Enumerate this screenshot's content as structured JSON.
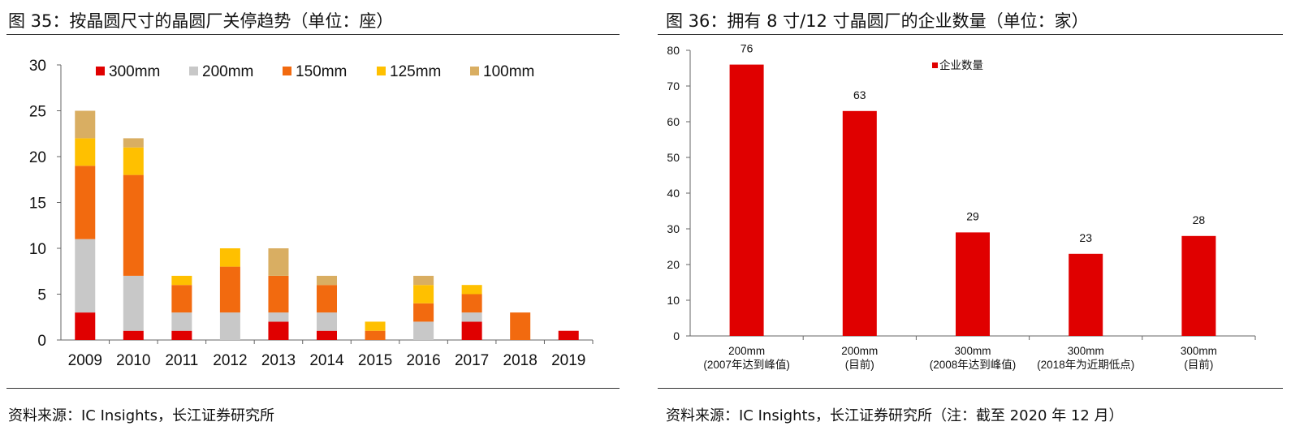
{
  "left": {
    "title": "图 35：按晶圆尺寸的晶圆厂关停趋势（单位：座）",
    "source": "资料来源：IC Insights，长江证券研究所"
  },
  "right": {
    "title": "图 36：拥有 8 寸/12 寸晶圆厂的企业数量（单位：家）",
    "source": "资料来源：IC Insights，长江证券研究所（注：截至 2020 年 12 月）"
  },
  "chart_data": [
    {
      "type": "bar",
      "stacked": true,
      "title": "图 35：按晶圆尺寸的晶圆厂关停趋势（单位：座）",
      "categories": [
        "2009",
        "2010",
        "2011",
        "2012",
        "2013",
        "2014",
        "2015",
        "2016",
        "2017",
        "2018",
        "2019"
      ],
      "series": [
        {
          "name": "300mm",
          "color": "#e00000",
          "values": [
            3,
            1,
            1,
            0,
            2,
            1,
            0,
            0,
            2,
            0,
            1
          ]
        },
        {
          "name": "200mm",
          "color": "#c8c8c8",
          "values": [
            8,
            6,
            2,
            3,
            1,
            2,
            0,
            2,
            1,
            0,
            0
          ]
        },
        {
          "name": "150mm",
          "color": "#f26a0f",
          "values": [
            8,
            11,
            3,
            5,
            4,
            3,
            1,
            2,
            2,
            3,
            0
          ]
        },
        {
          "name": "125mm",
          "color": "#ffc000",
          "values": [
            3,
            3,
            1,
            2,
            0,
            0,
            1,
            2,
            1,
            0,
            0
          ]
        },
        {
          "name": "100mm",
          "color": "#d9ae62",
          "values": [
            3,
            1,
            0,
            0,
            3,
            1,
            0,
            1,
            0,
            0,
            0
          ]
        }
      ],
      "ylim": [
        0,
        30
      ],
      "yticks": [
        0,
        5,
        10,
        15,
        20,
        25,
        30
      ],
      "legend": "top",
      "grid": false
    },
    {
      "type": "bar",
      "title": "图 36：拥有 8 寸/12 寸晶圆厂的企业数量（单位：家）",
      "categories": [
        [
          "200mm",
          "(2007年达到峰值)"
        ],
        [
          "200mm",
          "(目前)"
        ],
        [
          "300mm",
          "(2008年达到峰值)"
        ],
        [
          "300mm",
          "(2018年为近期低点)"
        ],
        [
          "300mm",
          "(目前)"
        ]
      ],
      "series": [
        {
          "name": "企业数量",
          "color": "#e00000",
          "values": [
            76,
            63,
            29,
            23,
            28
          ]
        }
      ],
      "ylim": [
        0,
        80
      ],
      "yticks": [
        0,
        10,
        20,
        30,
        40,
        50,
        60,
        70,
        80
      ],
      "legend": "top-left",
      "grid": false
    }
  ]
}
